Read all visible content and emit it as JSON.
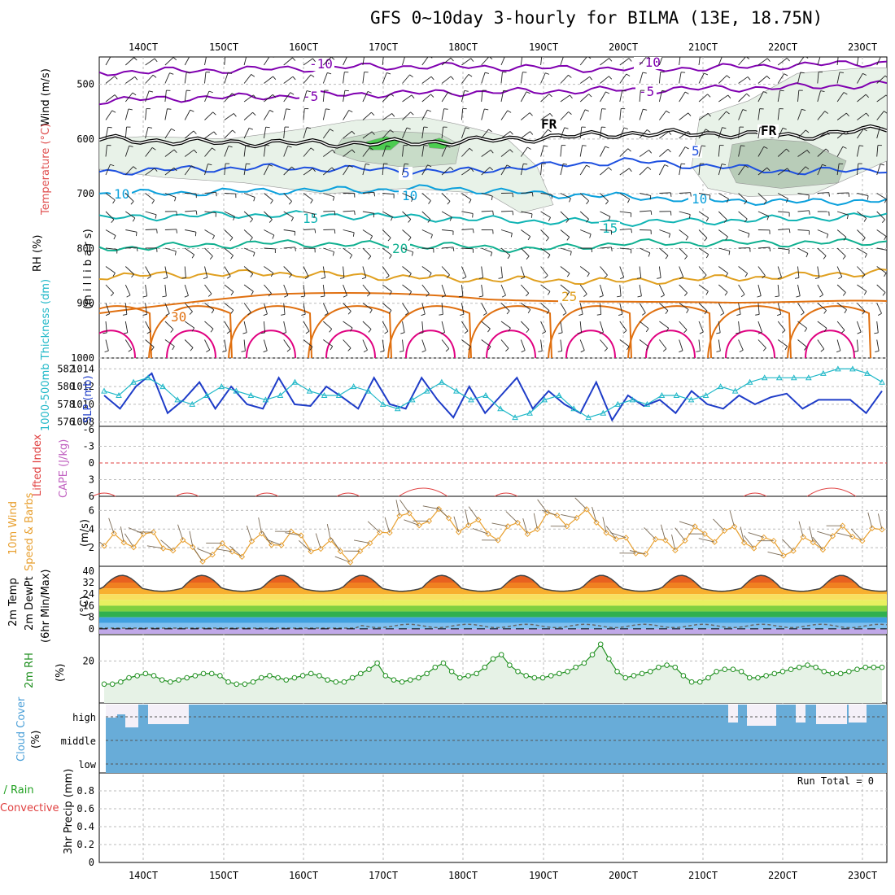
{
  "title": "GFS 0~10day 3-hourly for BILMA (13E, 18.75N)",
  "dates": [
    "14OCT",
    "15OCT",
    "16OCT",
    "17OCT",
    "18OCT",
    "19OCT",
    "20OCT",
    "21OCT",
    "22OCT",
    "23OCT"
  ],
  "panels": {
    "upper": {
      "ylabel_main": "(m i l l i b a r s)",
      "ylabel_wind": "Wind (m/s)",
      "ylabel_temp": "Temperature (°C)",
      "ylabel_rh": "RH (%)",
      "levels": [
        "500",
        "600",
        "700",
        "800",
        "900",
        "1000"
      ],
      "temp_labels": [
        "-10",
        "-5",
        "FR",
        "5",
        "10",
        "15",
        "20",
        "25",
        "30"
      ],
      "rh_labels": [
        "10",
        "30",
        "60",
        "30",
        "10",
        "30",
        "50",
        "30",
        "10"
      ]
    },
    "slp": {
      "ylabel_thk": "1000-500mb Thickness (dm)",
      "ylabel_slp": "SLP (mb)",
      "thk_ticks": [
        "582",
        "580",
        "578",
        "576"
      ],
      "slp_ticks": [
        "1014",
        "1012",
        "1010",
        "1008"
      ]
    },
    "cape": {
      "ylabel_li": "Lifted Index",
      "ylabel_cape": "CAPE (J/kg)",
      "ticks": [
        "-6",
        "-3",
        "0",
        "3",
        "6"
      ]
    },
    "wind10": {
      "ylabel_a": "10m Wind",
      "ylabel_b": "Speed & Barbs",
      "ylabel_unit": "(m/s)",
      "ticks": [
        "6",
        "4",
        "2"
      ]
    },
    "temp2m": {
      "ylabel_a": "2m Temp",
      "ylabel_b": "2m DewPt",
      "ylabel_c": "(6hr Min/Max)",
      "ylabel_unit": "(°C)",
      "ticks": [
        "40",
        "32",
        "24",
        "16",
        "8",
        "0"
      ]
    },
    "rh2m": {
      "ylabel_a": "2m RH",
      "ylabel_unit": "(%)",
      "ticks": [
        "20"
      ]
    },
    "cloud": {
      "ylabel_a": "Cloud Cover",
      "ylabel_unit": "(%)",
      "levels": [
        "high",
        "middle",
        "low"
      ]
    },
    "precip": {
      "ylabel_a": "Total / Rain",
      "ylabel_b": "Convective",
      "ylabel_c": "3hr Precip (mm)",
      "ticks": [
        "0.8",
        "0.6",
        "0.4",
        "0.2",
        "0"
      ],
      "run_total": "Run Total = 0"
    }
  },
  "colors": {
    "minus10": "#8000b0",
    "minus5": "#8000b0",
    "frz": "#000000",
    "t5": "#1e50e0",
    "t10": "#0aa0dc",
    "t15": "#10b4b4",
    "t20": "#10b090",
    "t25": "#e0a020",
    "t30": "#e07010",
    "t35": "#e00080",
    "slp": "#1e3cc8",
    "thk": "#20b8c8",
    "cape": "#e04040",
    "wind": "#e8a030",
    "rh2m": "#209020",
    "cloud": "#68acd8"
  },
  "chart_data": [
    {
      "type": "line",
      "name_hint": "upper-air temperature and rh cross-section",
      "x": [
        "14OCT",
        "15OCT",
        "16OCT",
        "17OCT",
        "18OCT",
        "19OCT",
        "20OCT",
        "21OCT",
        "22OCT",
        "23OCT"
      ],
      "ylim": [
        1000,
        450
      ],
      "series": [
        {
          "name": "-10",
          "values": [
            478,
            475,
            472,
            468,
            467,
            470,
            472,
            470,
            465,
            460
          ]
        },
        {
          "name": "-5",
          "values": [
            530,
            525,
            522,
            518,
            515,
            513,
            510,
            508,
            505,
            500
          ]
        },
        {
          "name": "FR",
          "values": [
            600,
            605,
            607,
            608,
            605,
            598,
            590,
            590,
            595,
            580
          ]
        },
        {
          "name": "5",
          "values": [
            660,
            655,
            652,
            655,
            660,
            650,
            640,
            650,
            660,
            655
          ]
        },
        {
          "name": "10",
          "values": [
            700,
            698,
            694,
            693,
            690,
            700,
            705,
            712,
            715,
            712
          ]
        },
        {
          "name": "15",
          "values": [
            745,
            740,
            738,
            740,
            745,
            750,
            752,
            750,
            745,
            740
          ]
        },
        {
          "name": "20",
          "values": [
            800,
            795,
            790,
            793,
            795,
            802,
            790,
            790,
            790,
            788
          ]
        },
        {
          "name": "25",
          "values": [
            850,
            848,
            845,
            850,
            855,
            858,
            860,
            855,
            850,
            842
          ]
        }
      ]
    },
    {
      "type": "line",
      "name_hint": "slp and thickness",
      "ylim_slp": [
        1008,
        1014
      ],
      "ylim_thk": [
        576,
        582
      ],
      "series": [
        {
          "name": "SLP (mb)",
          "values": [
            1011,
            1009.5,
            1012,
            1013.5,
            1009,
            1010.5,
            1012.5,
            1009.5,
            1012,
            1010,
            1009.5,
            1013,
            1010,
            1009.8,
            1012,
            1010.8,
            1009.5,
            1013,
            1010,
            1009.5,
            1013,
            1010.5,
            1008.5,
            1012,
            1009,
            1011,
            1013,
            1009.5,
            1011.5,
            1010,
            1009,
            1012.5,
            1008.2,
            1011,
            1009.8,
            1010.5,
            1009,
            1011.5,
            1010,
            1009.5,
            1011,
            1010,
            1010.8,
            1011.2,
            1009.5,
            1010.5,
            1010.5,
            1010.5,
            1009,
            1011.5
          ]
        },
        {
          "name": "1000-500mb Thickness (dm)",
          "values": [
            579.5,
            579,
            580.5,
            581,
            580,
            578.5,
            578,
            579,
            580,
            579.5,
            579,
            578.5,
            579,
            580.5,
            579.5,
            579,
            579,
            580,
            579.5,
            578,
            577.5,
            578.5,
            579.5,
            580.5,
            579.5,
            578.5,
            579,
            577.5,
            576.5,
            577,
            578.5,
            579,
            577.5,
            576.5,
            577,
            578,
            578.5,
            578,
            579,
            579,
            578.5,
            579,
            580,
            579.5,
            580.5,
            581,
            581,
            581,
            581,
            581.5,
            582,
            582,
            581.5,
            580.5
          ]
        }
      ]
    },
    {
      "type": "line",
      "name_hint": "2m rh",
      "ylim": [
        0,
        30
      ],
      "series": [
        {
          "name": "2m RH",
          "values": [
            9,
            9,
            10,
            12,
            13,
            14,
            13,
            11,
            10,
            11,
            12,
            13,
            14,
            14,
            13,
            10,
            9,
            9,
            10,
            12,
            13,
            12,
            11,
            12,
            13,
            14,
            13,
            11,
            10,
            10,
            12,
            14,
            16,
            19,
            13,
            11,
            10,
            11,
            12,
            14,
            17,
            19,
            15,
            12,
            13,
            14,
            17,
            21,
            23,
            18,
            15,
            13,
            12,
            12,
            13,
            14,
            15,
            17,
            19,
            23,
            28,
            21,
            15,
            12,
            13,
            14,
            15,
            17,
            18,
            17,
            13,
            10,
            10,
            12,
            15,
            16,
            16,
            15,
            12,
            12,
            13,
            14,
            15,
            16,
            17,
            18,
            17,
            15,
            14,
            14,
            15,
            16,
            17,
            17,
            17
          ]
        }
      ]
    }
  ]
}
